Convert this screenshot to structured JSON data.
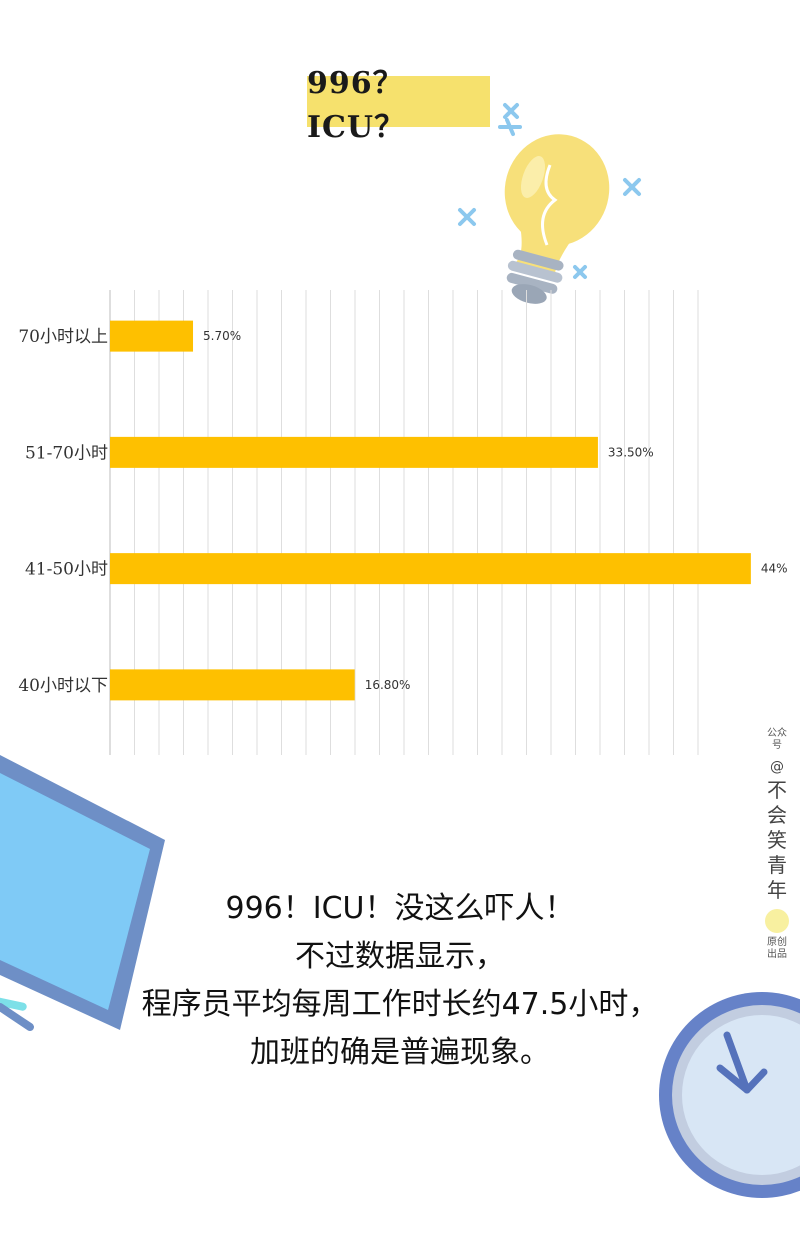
{
  "header": {
    "title": "996？ICU？"
  },
  "chart_data": {
    "type": "bar",
    "orientation": "horizontal",
    "categories": [
      "70小时以上",
      "51-70小时",
      "41-50小时",
      "40小时以下"
    ],
    "values": [
      5.7,
      33.5,
      44,
      16.8
    ],
    "data_labels": [
      "5.70%",
      "33.50%",
      "44%",
      "16.80%"
    ],
    "xlim": [
      0,
      46
    ],
    "grid": "vertical",
    "bar_color": "#fec000"
  },
  "caption": {
    "lines": [
      "996！ICU！没这么吓人！",
      "不过数据显示，",
      "程序员平均每周工作时长约47.5小时，",
      "加班的确是普遍现象。"
    ]
  },
  "watermark": {
    "top": "公众号",
    "name": "不会笑青年",
    "bottom": "原创出品"
  },
  "colors": {
    "title_bg": "#f6e16d",
    "bulb": "#f7e07a",
    "sparkle": "#8cc8ee",
    "monitor": "#7fcaf6",
    "monitor_frame": "#6e8fc6",
    "clock_ring": "#6682c8",
    "clock_face": "#d8e6f5"
  }
}
